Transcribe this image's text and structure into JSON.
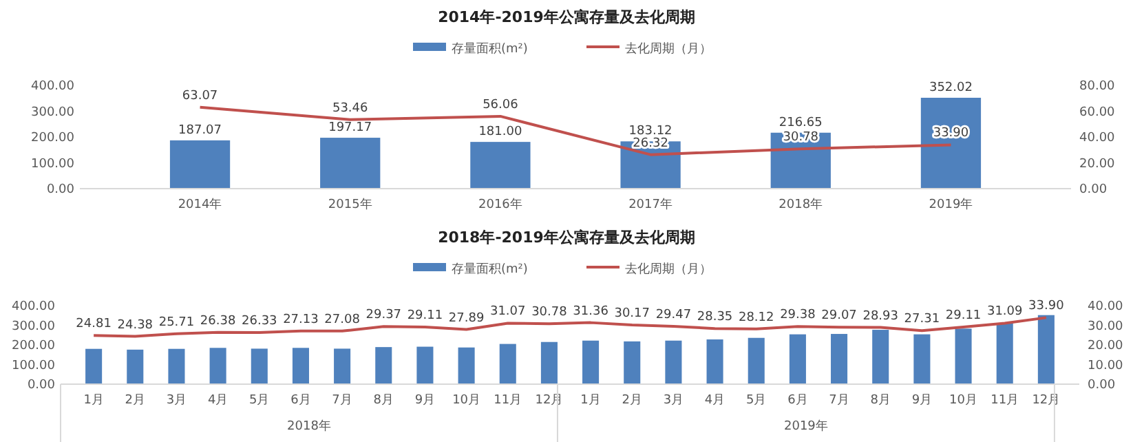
{
  "chart_data": [
    {
      "type": "bar",
      "title": "2014年-2019年公寓存量及去化周期",
      "categories": [
        "2014年",
        "2015年",
        "2016年",
        "2017年",
        "2018年",
        "2019年"
      ],
      "series": [
        {
          "name": "存量面积(m²)",
          "color": "#4f81bd",
          "values": [
            187.07,
            197.17,
            181.0,
            183.12,
            216.65,
            352.02
          ],
          "value_labels": [
            "187.07",
            "197.17",
            "181.00",
            "183.12",
            "216.65",
            "352.02"
          ]
        },
        {
          "name": "去化周期（月）",
          "type": "line",
          "axis": "y2",
          "color": "#c0504d",
          "values": [
            63.07,
            53.46,
            56.06,
            26.32,
            30.78,
            33.9
          ],
          "value_labels": [
            "63.07",
            "53.46",
            "56.06",
            "26.32",
            "30.78",
            "33.90"
          ]
        }
      ],
      "ylim": [
        0,
        400
      ],
      "yticks": [
        {
          "value": 0,
          "label": "0.00"
        },
        {
          "value": 100,
          "label": "100.00"
        },
        {
          "value": 200,
          "label": "200.00"
        },
        {
          "value": 300,
          "label": "300.00"
        },
        {
          "value": 400,
          "label": "400.00"
        }
      ],
      "y2lim": [
        0,
        80
      ],
      "y2ticks": [
        {
          "value": 0,
          "label": "0.00"
        },
        {
          "value": 20,
          "label": "20.00"
        },
        {
          "value": 40,
          "label": "40.00"
        },
        {
          "value": 60,
          "label": "60.00"
        },
        {
          "value": 80,
          "label": "80.00"
        }
      ],
      "legend": "top",
      "marker": "none"
    },
    {
      "type": "bar",
      "title": "2018年-2019年公寓存量及去化周期",
      "categories": [
        "1月",
        "2月",
        "3月",
        "4月",
        "5月",
        "6月",
        "7月",
        "8月",
        "9月",
        "10月",
        "11月",
        "12月",
        "1月",
        "2月",
        "3月",
        "4月",
        "5月",
        "6月",
        "7月",
        "8月",
        "9月",
        "10月",
        "11月",
        "12月"
      ],
      "annotations": [
        "2018年",
        "2019年"
      ],
      "series": [
        {
          "name": "存量面积(m²)",
          "color": "#4f81bd",
          "values": [
            180,
            176,
            180,
            185,
            181,
            185,
            181,
            189,
            191,
            187,
            205,
            215,
            222,
            218,
            222,
            228,
            236,
            254,
            256,
            277,
            254,
            283,
            312,
            352
          ]
        },
        {
          "name": "去化周期（月）",
          "type": "line",
          "axis": "y2",
          "color": "#c0504d",
          "values": [
            24.81,
            24.38,
            25.71,
            26.38,
            26.33,
            27.13,
            27.08,
            29.37,
            29.11,
            27.89,
            31.07,
            30.78,
            31.36,
            30.17,
            29.47,
            28.35,
            28.12,
            29.38,
            29.07,
            28.93,
            27.31,
            29.11,
            31.09,
            33.9
          ],
          "value_labels": [
            "24.81",
            "24.38",
            "25.71",
            "26.38",
            "26.33",
            "27.13",
            "27.08",
            "29.37",
            "29.11",
            "27.89",
            "31.07",
            "30.78",
            "31.36",
            "30.17",
            "29.47",
            "28.35",
            "28.12",
            "29.38",
            "29.07",
            "28.93",
            "27.31",
            "29.11",
            "31.09",
            "33.90"
          ]
        }
      ],
      "ylim": [
        0,
        400
      ],
      "yticks": [
        {
          "value": 0,
          "label": "0.00"
        },
        {
          "value": 100,
          "label": "100.00"
        },
        {
          "value": 200,
          "label": "200.00"
        },
        {
          "value": 300,
          "label": "300.00"
        },
        {
          "value": 400,
          "label": "400.00"
        }
      ],
      "y2lim": [
        0,
        40
      ],
      "y2ticks": [
        {
          "value": 0,
          "label": "0.00"
        },
        {
          "value": 10,
          "label": "10.00"
        },
        {
          "value": 20,
          "label": "20.00"
        },
        {
          "value": 30,
          "label": "30.00"
        },
        {
          "value": 40,
          "label": "40.00"
        }
      ],
      "legend": "top",
      "marker": "none"
    }
  ]
}
